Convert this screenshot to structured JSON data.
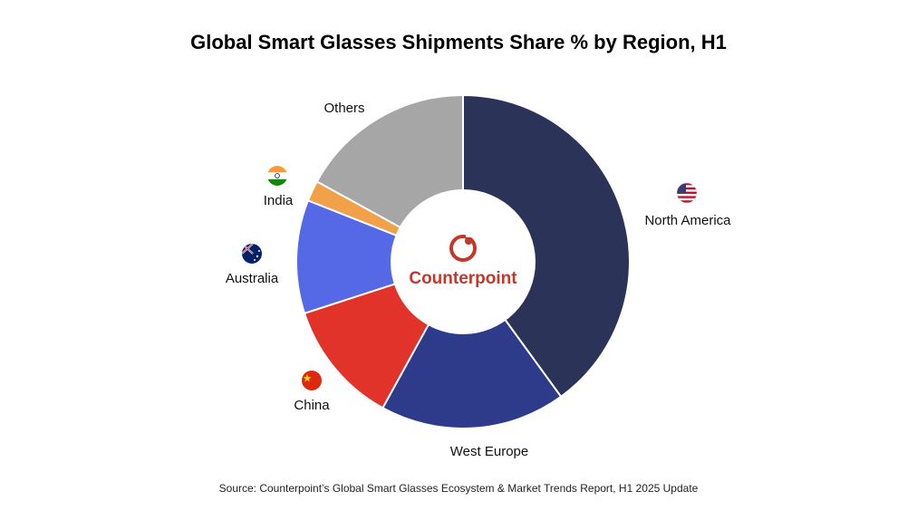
{
  "page": {
    "title": "Global Smart Glasses Shipments Share % by Region, H1",
    "source": "Source: Counterpoint’s Global Smart Glasses Ecosystem & Market Trends Report, H1 2025 Update"
  },
  "logo": {
    "text": "Counterpoint",
    "color": "#c0392b"
  },
  "chart_data": {
    "type": "pie",
    "style": "donut",
    "title": "Global Smart Glasses Shipments Share % by Region, H1",
    "legend": "none",
    "slices": [
      {
        "label": "North America",
        "value": 40,
        "color": "#2b3358",
        "icon": "usa-flag-icon"
      },
      {
        "label": "West Europe",
        "value": 18,
        "color": "#2e3a8a",
        "icon": ""
      },
      {
        "label": "China",
        "value": 12,
        "color": "#e2332a",
        "icon": "china-flag-icon"
      },
      {
        "label": "Australia",
        "value": 11,
        "color": "#5569e6",
        "icon": "australia-flag-icon"
      },
      {
        "label": "India",
        "value": 2,
        "color": "#f0a14a",
        "icon": "india-flag-icon"
      },
      {
        "label": "Others",
        "value": 17,
        "color": "#a6a6a6",
        "icon": ""
      }
    ]
  }
}
